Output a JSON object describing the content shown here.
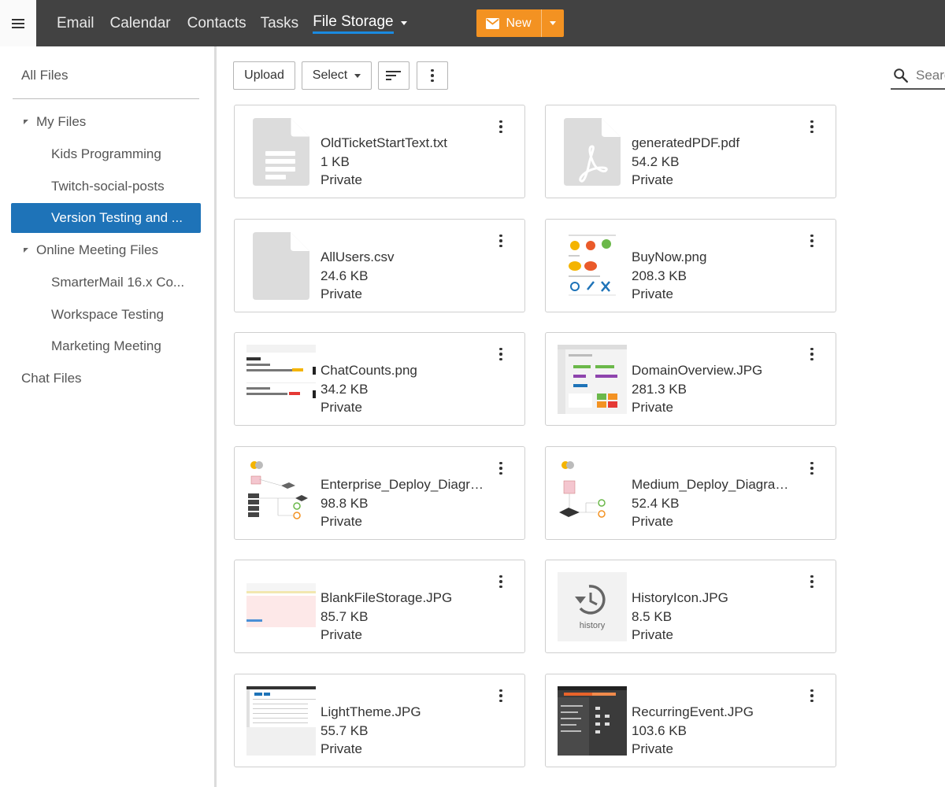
{
  "nav": {
    "items": [
      {
        "label": "Email"
      },
      {
        "label": "Calendar"
      },
      {
        "label": "Contacts"
      },
      {
        "label": "Tasks"
      },
      {
        "label": "File Storage",
        "active": true
      }
    ],
    "new_button": {
      "label": "New"
    }
  },
  "sidebar": {
    "all_files": "All Files",
    "tree": [
      {
        "label": "My Files"
      },
      {
        "label": "Kids Programming"
      },
      {
        "label": "Twitch-social-posts"
      },
      {
        "label": "Version Testing and ...",
        "selected": true
      },
      {
        "label": "Online Meeting Files"
      },
      {
        "label": "SmarterMail 16.x Co..."
      },
      {
        "label": "Workspace Testing"
      },
      {
        "label": "Marketing Meeting"
      }
    ],
    "chat_files": "Chat Files"
  },
  "toolbar": {
    "upload_label": "Upload",
    "select_label": "Select",
    "search_placeholder": "Search"
  },
  "files": [
    {
      "name": "OldTicketStartText.txt",
      "size": "1 KB",
      "visibility": "Private",
      "thumb": "text-file-icon"
    },
    {
      "name": "generatedPDF.pdf",
      "size": "54.2 KB",
      "visibility": "Private",
      "thumb": "pdf-file-icon"
    },
    {
      "name": "AllUsers.csv",
      "size": "24.6 KB",
      "visibility": "Private",
      "thumb": "generic-file-icon"
    },
    {
      "name": "BuyNow.png",
      "size": "208.3 KB",
      "visibility": "Private",
      "thumb": "image-thumbnail"
    },
    {
      "name": "ChatCounts.png",
      "size": "34.2 KB",
      "visibility": "Private",
      "thumb": "image-thumbnail"
    },
    {
      "name": "DomainOverview.JPG",
      "size": "281.3 KB",
      "visibility": "Private",
      "thumb": "image-thumbnail"
    },
    {
      "name": "Enterprise_Deploy_Diagra...",
      "size": "98.8 KB",
      "visibility": "Private",
      "thumb": "image-thumbnail"
    },
    {
      "name": "Medium_Deploy_Diagrams...",
      "size": "52.4 KB",
      "visibility": "Private",
      "thumb": "image-thumbnail"
    },
    {
      "name": "BlankFileStorage.JPG",
      "size": "85.7 KB",
      "visibility": "Private",
      "thumb": "image-thumbnail"
    },
    {
      "name": "HistoryIcon.JPG",
      "size": "8.5 KB",
      "visibility": "Private",
      "thumb": "history-thumbnail",
      "thumb_caption": "history"
    },
    {
      "name": "LightTheme.JPG",
      "size": "55.7 KB",
      "visibility": "Private",
      "thumb": "image-thumbnail"
    },
    {
      "name": "RecurringEvent.JPG",
      "size": "103.6 KB",
      "visibility": "Private",
      "thumb": "image-thumbnail"
    }
  ],
  "colors": {
    "topbar": "#424242",
    "accent_orange": "#f39222",
    "selection_blue": "#1e73b8",
    "active_underline": "#1a8ae0"
  }
}
